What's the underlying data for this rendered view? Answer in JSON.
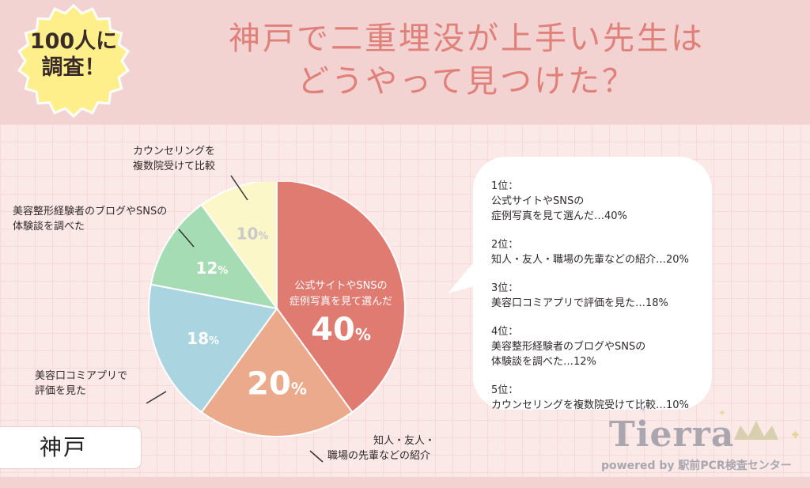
{
  "badge": {
    "line1": "100人に",
    "line2": "調査！"
  },
  "header": {
    "title_line1": "神戸で二重埋没が上手い先生は",
    "title_line2": "どうやって見つけた？"
  },
  "region_label": "神戸",
  "colors": {
    "header_bg": "#f3d2d2",
    "title": "#df8079",
    "badge_fill": "#ffef8a",
    "slice_colors": [
      "#e07b72",
      "#ebaa8b",
      "#a9d4e0",
      "#a6dcb4",
      "#fbf7c8"
    ]
  },
  "chart_data": {
    "type": "pie",
    "categories": [
      "公式サイトやSNSの症例写真を見て選んだ",
      "知人・友人・職場の先輩などの紹介",
      "美容口コミアプリで評価を見た",
      "美容整形経験者のブログやSNSの体験談を調べた",
      "カウンセリングを複数院受けて比較"
    ],
    "values": [
      40,
      20,
      18,
      12,
      10
    ],
    "value_labels": [
      "40",
      "20",
      "18",
      "12",
      "10"
    ],
    "unit": "%",
    "inner_label": [
      "公式サイトやSNSの",
      "症例写真を見て選んだ"
    ],
    "outer_labels": {
      "consult": [
        "カウンセリングを",
        "複数院受けて比較"
      ],
      "blog": [
        "美容整形経験者のブログやSNSの",
        "体験談を調べた"
      ],
      "app": [
        "美容口コミアプリで",
        "評価を見た"
      ],
      "friend": [
        "知人・友人・",
        "職場の先輩などの紹介"
      ]
    }
  },
  "ranking": [
    {
      "rank": "1位：",
      "lines": [
        "公式サイトやSNSの",
        "症例写真を見て選んだ…40%"
      ]
    },
    {
      "rank": "2位：",
      "lines": [
        "知人・友人・職場の先輩などの紹介…20%"
      ]
    },
    {
      "rank": "3位：",
      "lines": [
        "美容口コミアプリで評価を見た…18%"
      ]
    },
    {
      "rank": "4位：",
      "lines": [
        "美容整形経験者のブログやSNSの",
        "体験談を調べた…12%"
      ]
    },
    {
      "rank": "5位：",
      "lines": [
        "カウンセリングを複数院受けて比較…10%"
      ]
    }
  ],
  "logo": {
    "name": "Tierra",
    "sub": "powered by 駅前PCR検査センター"
  }
}
